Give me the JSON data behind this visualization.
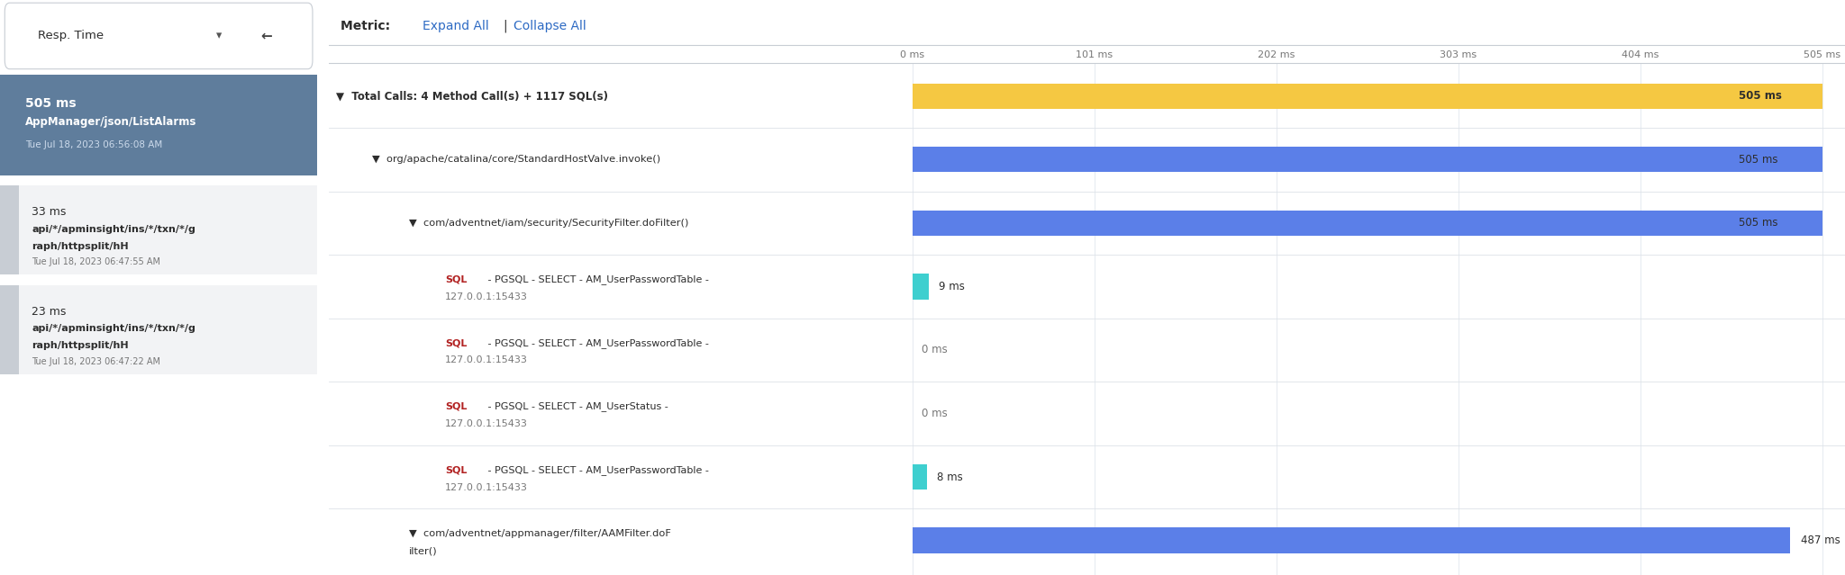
{
  "bg_color": "#ffffff",
  "divider_color": "#4a7ab5",
  "sidebar": {
    "dropdown_label": "Resp. Time",
    "back_arrow": "⇐",
    "selected_row": {
      "bg": "#5f7d9c",
      "ms": "505 ms",
      "title": "AppManager/json/ListAlarms",
      "subtitle": "Tue Jul 18, 2023 06:56:08 AM"
    },
    "rows": [
      {
        "ms": "33 ms",
        "line1": "api/*/apminsight/ins/*/txn/*/g",
        "line2": "raph/httpsplit/hH",
        "subtitle": "Tue Jul 18, 2023 06:47:55 AM"
      },
      {
        "ms": "23 ms",
        "line1": "api/*/apminsight/ins/*/txn/*/g",
        "line2": "raph/httpsplit/hH",
        "subtitle": "Tue Jul 18, 2023 06:47:22 AM"
      }
    ]
  },
  "metric_header": {
    "label": "Metric: ",
    "expand": "Expand All",
    "sep": "|",
    "collapse": "Collapse All"
  },
  "axis_max_ms": 505,
  "axis_ticks_ms": [
    0,
    101,
    202,
    303,
    404,
    505
  ],
  "axis_tick_labels": [
    "0 ms",
    "101 ms",
    "202 ms",
    "303 ms",
    "404 ms",
    "505 ms"
  ],
  "rows": [
    {
      "line1": "▼  Total Calls: 4 Method Call(s) + 1117 SQL(s)",
      "line2": null,
      "bold": true,
      "indent": 0,
      "bar_value": 505,
      "bar_color": "#f5c842",
      "value_label": "505 ms",
      "value_bold": true,
      "sql": false
    },
    {
      "line1": "▼  org/apache/catalina/core/StandardHostValve.invoke()",
      "line2": null,
      "bold": false,
      "indent": 1,
      "bar_value": 505,
      "bar_color": "#5b7fe8",
      "value_label": "505 ms",
      "value_bold": false,
      "sql": false
    },
    {
      "line1": "▼  com/adventnet/iam/security/SecurityFilter.doFilter()",
      "line2": null,
      "bold": false,
      "indent": 2,
      "bar_value": 505,
      "bar_color": "#5b7fe8",
      "value_label": "505 ms",
      "value_bold": false,
      "sql": false
    },
    {
      "line1": "SQL - PGSQL - SELECT - AM_UserPasswordTable -",
      "line2": "127.0.0.1:15433",
      "bold": false,
      "indent": 3,
      "bar_value": 9,
      "bar_color": "#3ecfcf",
      "value_label": "9 ms",
      "value_bold": false,
      "sql": true
    },
    {
      "line1": "SQL - PGSQL - SELECT - AM_UserPasswordTable -",
      "line2": "127.0.0.1:15433",
      "bold": false,
      "indent": 3,
      "bar_value": 0,
      "bar_color": "#3ecfcf",
      "value_label": "0 ms",
      "value_bold": false,
      "sql": true
    },
    {
      "line1": "SQL - PGSQL - SELECT - AM_UserStatus -",
      "line2": "127.0.0.1:15433",
      "bold": false,
      "indent": 3,
      "bar_value": 0,
      "bar_color": "#3ecfcf",
      "value_label": "0 ms",
      "value_bold": false,
      "sql": true
    },
    {
      "line1": "SQL - PGSQL - SELECT - AM_UserPasswordTable -",
      "line2": "127.0.0.1:15433",
      "bold": false,
      "indent": 3,
      "bar_value": 8,
      "bar_color": "#3ecfcf",
      "value_label": "8 ms",
      "value_bold": false,
      "sql": true
    },
    {
      "line1": "▼  com/adventnet/appmanager/filter/AAMFilter.doF",
      "line2": "ilter()",
      "bold": false,
      "indent": 2,
      "bar_value": 487,
      "bar_color": "#5b7fe8",
      "value_label": "487 ms",
      "value_bold": false,
      "sql": false
    }
  ],
  "link_color": "#2e6bc4",
  "sql_color": "#b22222",
  "text_color": "#2d2d2d",
  "subtle_color": "#777777",
  "grid_color": "#e5eaf0",
  "sep_color": "#dde2e8",
  "header_sep_color": "#c8cdd4"
}
